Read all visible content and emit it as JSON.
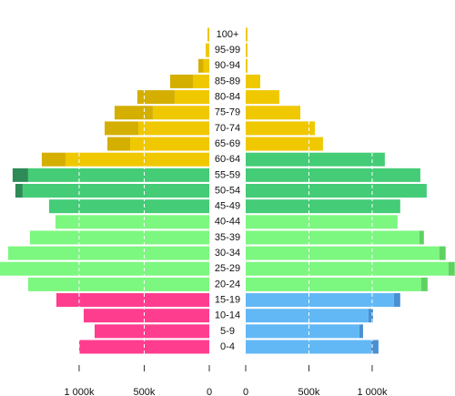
{
  "chart_data": {
    "type": "pyramid",
    "categories": [
      "0-4",
      "5-9",
      "10-14",
      "15-19",
      "20-24",
      "25-29",
      "30-34",
      "35-39",
      "40-44",
      "45-49",
      "50-54",
      "55-59",
      "60-64",
      "65-69",
      "70-74",
      "75-79",
      "80-84",
      "85-89",
      "90-94",
      "95-99",
      "100+"
    ],
    "left": {
      "values": [
        1000000,
        881000,
        965000,
        1175000,
        1392000,
        1608000,
        1545000,
        1378000,
        1182000,
        1231000,
        1434000,
        1392000,
        1105000,
        608000,
        545000,
        434000,
        266000,
        126000,
        44000,
        28000,
        14000
      ],
      "extra": [
        0,
        0,
        0,
        0,
        0,
        0,
        0,
        0,
        0,
        0,
        56000,
        119000,
        182000,
        175000,
        259000,
        294000,
        287000,
        175000,
        40000,
        0,
        0
      ],
      "colors": [
        "#ff3d8f",
        "#ff3d8f",
        "#ff3d8f",
        "#ff3d8f",
        "#7cf77f",
        "#7cf77f",
        "#7cf77f",
        "#7cf77f",
        "#7cf77f",
        "#44cc77",
        "#44cc77",
        "#44cc77",
        "#f0c800",
        "#f0c800",
        "#f0c800",
        "#f0c800",
        "#f0c800",
        "#f0c800",
        "#f0c800",
        "#f0c800",
        "#f0c800"
      ],
      "extra_colors": [
        "#e02f7a",
        "#e02f7a",
        "#e02f7a",
        "#e02f7a",
        "#5ed261",
        "#5ed261",
        "#5ed261",
        "#5ed261",
        "#5ed261",
        "#2e8b57",
        "#2e8b57",
        "#2e8b57",
        "#d4af00",
        "#d4af00",
        "#d4af00",
        "#d4af00",
        "#d4af00",
        "#d4af00",
        "#d4af00",
        "#d4af00",
        "#d4af00"
      ],
      "xlim": [
        0,
        1608000
      ],
      "xticks": [
        0,
        {
          "value": 500000,
          "label": "500k"
        },
        {
          "value": 1000000,
          "label": "1 000k"
        }
      ]
    },
    "right": {
      "values": [
        992000,
        899000,
        971000,
        1172000,
        1388000,
        1603000,
        1531000,
        1373000,
        1201000,
        1222000,
        1431000,
        1381000,
        1100000,
        611000,
        547000,
        432000,
        266000,
        115000,
        14000,
        14000,
        14000
      ],
      "extra": [
        58000,
        29000,
        36000,
        50000,
        50000,
        50000,
        50000,
        36000,
        0,
        0,
        0,
        0,
        0,
        0,
        0,
        0,
        0,
        0,
        0,
        0,
        0
      ],
      "colors": [
        "#62b8f5",
        "#62b8f5",
        "#62b8f5",
        "#62b8f5",
        "#7cf77f",
        "#7cf77f",
        "#7cf77f",
        "#7cf77f",
        "#7cf77f",
        "#44cc77",
        "#44cc77",
        "#44cc77",
        "#44cc77",
        "#f0c800",
        "#f0c800",
        "#f0c800",
        "#f0c800",
        "#f0c800",
        "#f0c800",
        "#f0c800",
        "#f0c800"
      ],
      "extra_colors": [
        "#4a90d0",
        "#4a90d0",
        "#4a90d0",
        "#4a90d0",
        "#5ed261",
        "#5ed261",
        "#5ed261",
        "#5ed261",
        "#5ed261",
        "#2e8b57",
        "#2e8b57",
        "#2e8b57",
        "#2e8b57",
        "#d4af00",
        "#d4af00",
        "#d4af00",
        "#d4af00",
        "#d4af00",
        "#d4af00",
        "#d4af00",
        "#d4af00"
      ],
      "xlim": [
        0,
        1655000
      ],
      "xticks": [
        0,
        {
          "value": 500000,
          "label": "500k"
        },
        {
          "value": 1000000,
          "label": "1 000k"
        }
      ]
    },
    "grid": true
  }
}
